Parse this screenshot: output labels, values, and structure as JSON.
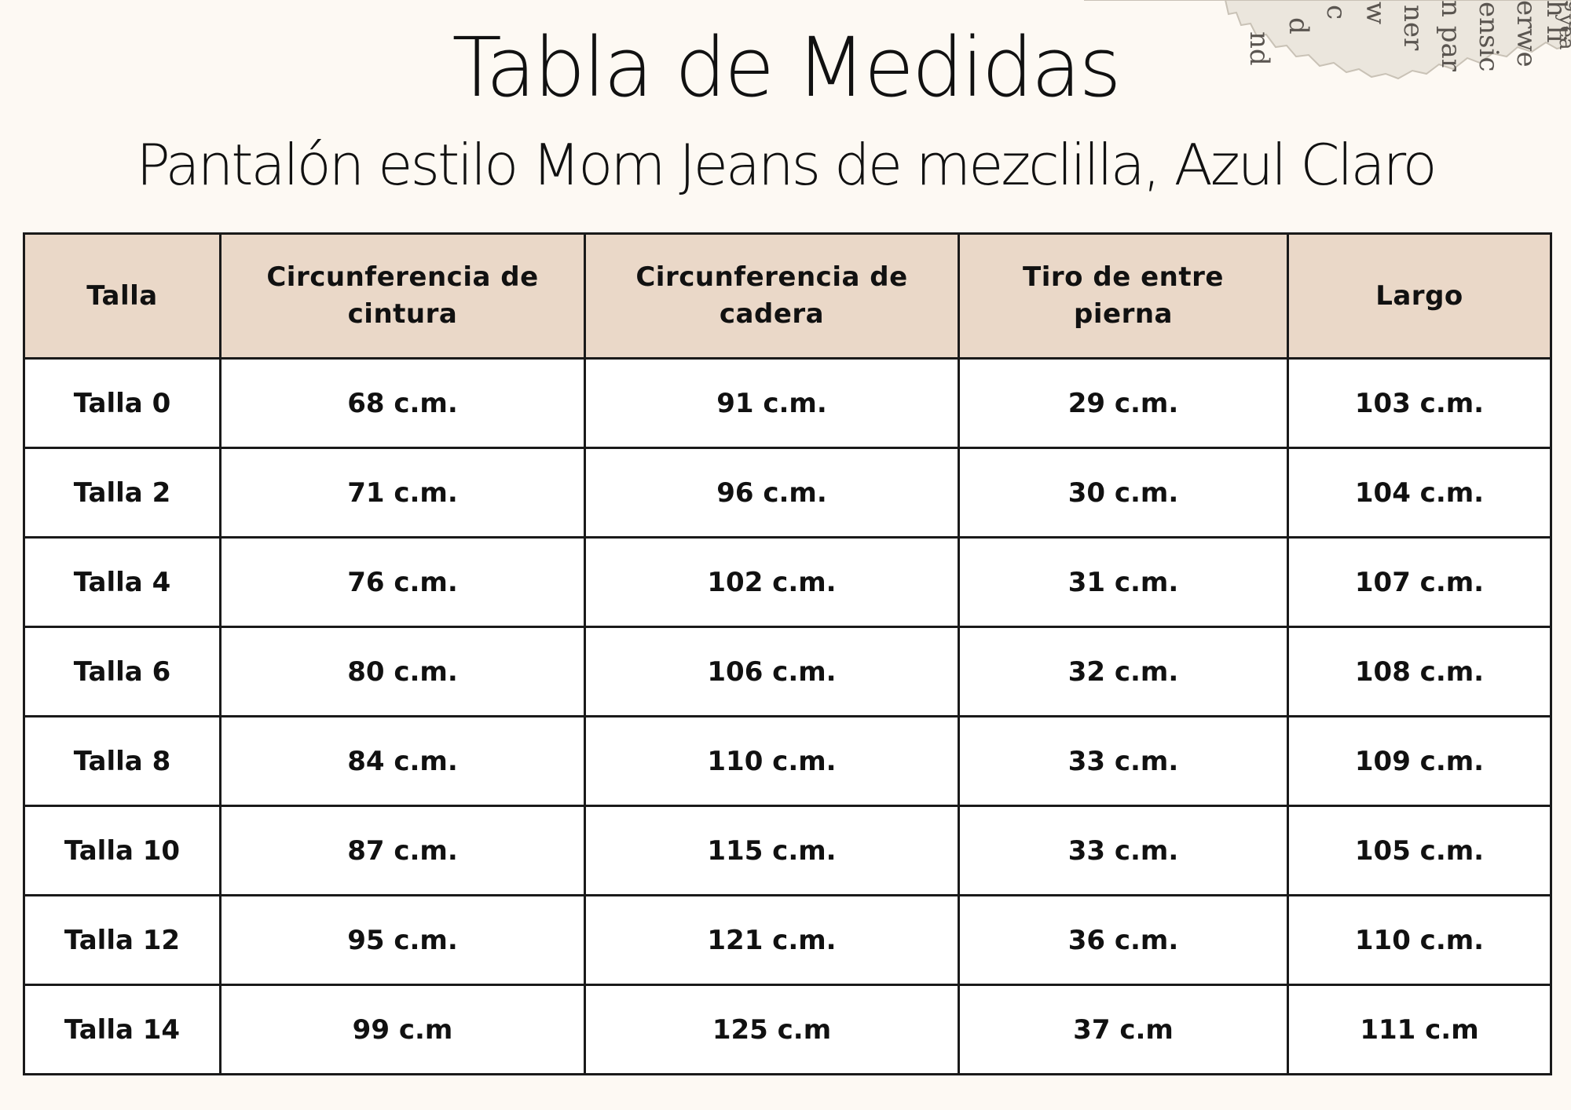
{
  "title": "Tabla de Medidas",
  "subtitle": "Pantalón estilo Mom Jeans de mezclilla, Azul Claro",
  "decoration": {
    "torn_paper_text": [
      "nd",
      "d",
      "c",
      "w",
      "ner",
      "n par",
      "ensic",
      "erwe",
      "h li",
      "yea",
      "g-c"
    ]
  },
  "table": {
    "headers": [
      "Talla",
      "Circunferencia  de cintura",
      "Circunferencia de cadera",
      "Tiro de entre pierna",
      "Largo"
    ],
    "rows": [
      [
        "Talla 0",
        "68 c.m.",
        "91 c.m.",
        "29 c.m.",
        "103 c.m."
      ],
      [
        "Talla 2",
        "71 c.m.",
        "96 c.m.",
        "30 c.m.",
        "104 c.m."
      ],
      [
        "Talla 4",
        "76 c.m.",
        "102 c.m.",
        "31 c.m.",
        "107 c.m."
      ],
      [
        "Talla 6",
        "80 c.m.",
        "106 c.m.",
        "32 c.m.",
        "108 c.m."
      ],
      [
        "Talla 8",
        "84 c.m.",
        "110 c.m.",
        "33 c.m.",
        "109 c.m."
      ],
      [
        "Talla 10",
        "87 c.m.",
        "115 c.m.",
        "33 c.m.",
        "105 c.m."
      ],
      [
        "Talla 12",
        "95 c.m.",
        "121 c.m.",
        "36 c.m.",
        "110 c.m."
      ],
      [
        "Talla 14",
        "99 c.m",
        "125 c.m",
        "37 c.m",
        "111 c.m"
      ]
    ]
  }
}
